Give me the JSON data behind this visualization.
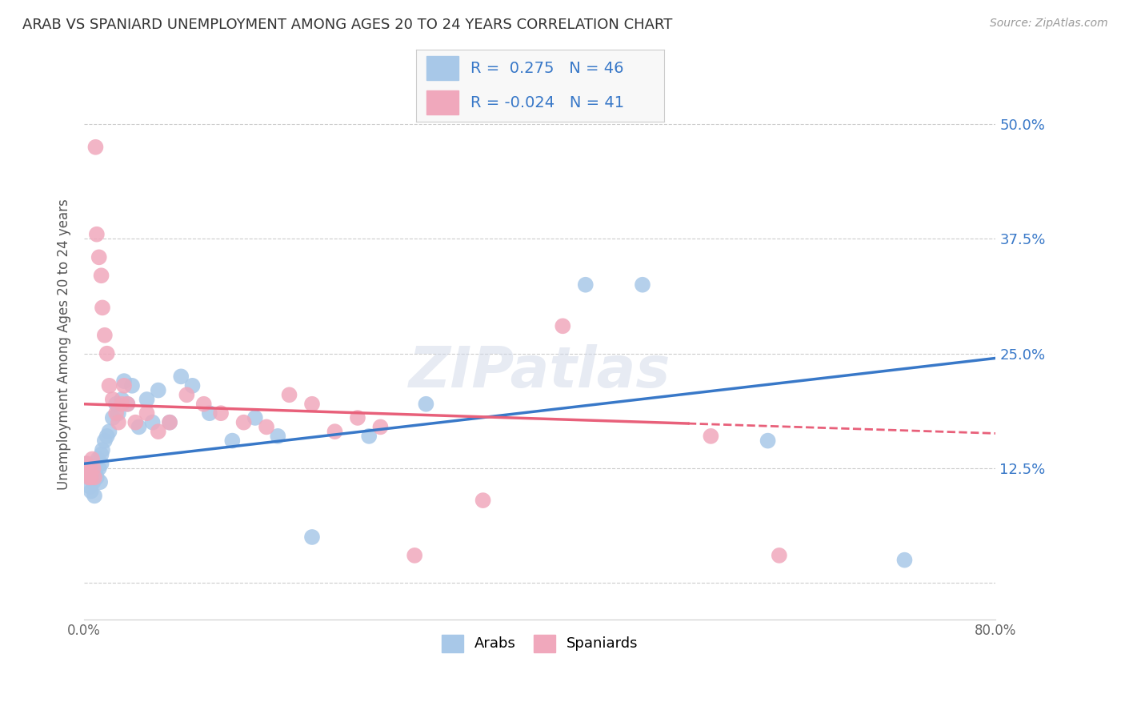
{
  "title": "ARAB VS SPANIARD UNEMPLOYMENT AMONG AGES 20 TO 24 YEARS CORRELATION CHART",
  "source": "Source: ZipAtlas.com",
  "ylabel": "Unemployment Among Ages 20 to 24 years",
  "xlim": [
    0.0,
    0.8
  ],
  "ylim": [
    -0.04,
    0.56
  ],
  "xticks": [
    0.0,
    0.2,
    0.4,
    0.6,
    0.8
  ],
  "xticklabels": [
    "0.0%",
    "",
    "",
    "",
    "80.0%"
  ],
  "yticks": [
    0.0,
    0.125,
    0.25,
    0.375,
    0.5
  ],
  "yticklabels": [
    "",
    "12.5%",
    "25.0%",
    "37.5%",
    "50.0%"
  ],
  "background_color": "#ffffff",
  "grid_color": "#cccccc",
  "title_color": "#333333",
  "blue_color": "#a8c8e8",
  "pink_color": "#f0a8bc",
  "line_blue": "#3878c8",
  "line_pink": "#e8607a",
  "legend_R_arab": "0.275",
  "legend_N_arab": "46",
  "legend_R_span": "-0.024",
  "legend_N_span": "41",
  "arab_x": [
    0.002,
    0.003,
    0.004,
    0.005,
    0.005,
    0.006,
    0.007,
    0.008,
    0.009,
    0.01,
    0.01,
    0.011,
    0.012,
    0.013,
    0.014,
    0.015,
    0.015,
    0.016,
    0.018,
    0.02,
    0.022,
    0.025,
    0.028,
    0.03,
    0.033,
    0.035,
    0.038,
    0.042,
    0.048,
    0.055,
    0.06,
    0.065,
    0.075,
    0.085,
    0.095,
    0.11,
    0.13,
    0.15,
    0.17,
    0.2,
    0.25,
    0.3,
    0.44,
    0.49,
    0.6,
    0.72
  ],
  "arab_y": [
    0.13,
    0.125,
    0.12,
    0.115,
    0.105,
    0.1,
    0.125,
    0.11,
    0.095,
    0.13,
    0.12,
    0.115,
    0.135,
    0.125,
    0.11,
    0.14,
    0.13,
    0.145,
    0.155,
    0.16,
    0.165,
    0.18,
    0.195,
    0.185,
    0.2,
    0.22,
    0.195,
    0.215,
    0.17,
    0.2,
    0.175,
    0.21,
    0.175,
    0.225,
    0.215,
    0.185,
    0.155,
    0.18,
    0.16,
    0.05,
    0.16,
    0.195,
    0.325,
    0.325,
    0.155,
    0.025
  ],
  "spaniard_x": [
    0.002,
    0.003,
    0.004,
    0.005,
    0.006,
    0.007,
    0.008,
    0.009,
    0.01,
    0.011,
    0.013,
    0.015,
    0.016,
    0.018,
    0.02,
    0.022,
    0.025,
    0.028,
    0.03,
    0.033,
    0.035,
    0.038,
    0.045,
    0.055,
    0.065,
    0.075,
    0.09,
    0.105,
    0.12,
    0.14,
    0.16,
    0.18,
    0.2,
    0.22,
    0.24,
    0.26,
    0.29,
    0.35,
    0.42,
    0.55,
    0.61
  ],
  "spaniard_y": [
    0.13,
    0.12,
    0.115,
    0.125,
    0.115,
    0.135,
    0.125,
    0.115,
    0.475,
    0.38,
    0.355,
    0.335,
    0.3,
    0.27,
    0.25,
    0.215,
    0.2,
    0.185,
    0.175,
    0.195,
    0.215,
    0.195,
    0.175,
    0.185,
    0.165,
    0.175,
    0.205,
    0.195,
    0.185,
    0.175,
    0.17,
    0.205,
    0.195,
    0.165,
    0.18,
    0.17,
    0.03,
    0.09,
    0.28,
    0.16,
    0.03
  ]
}
